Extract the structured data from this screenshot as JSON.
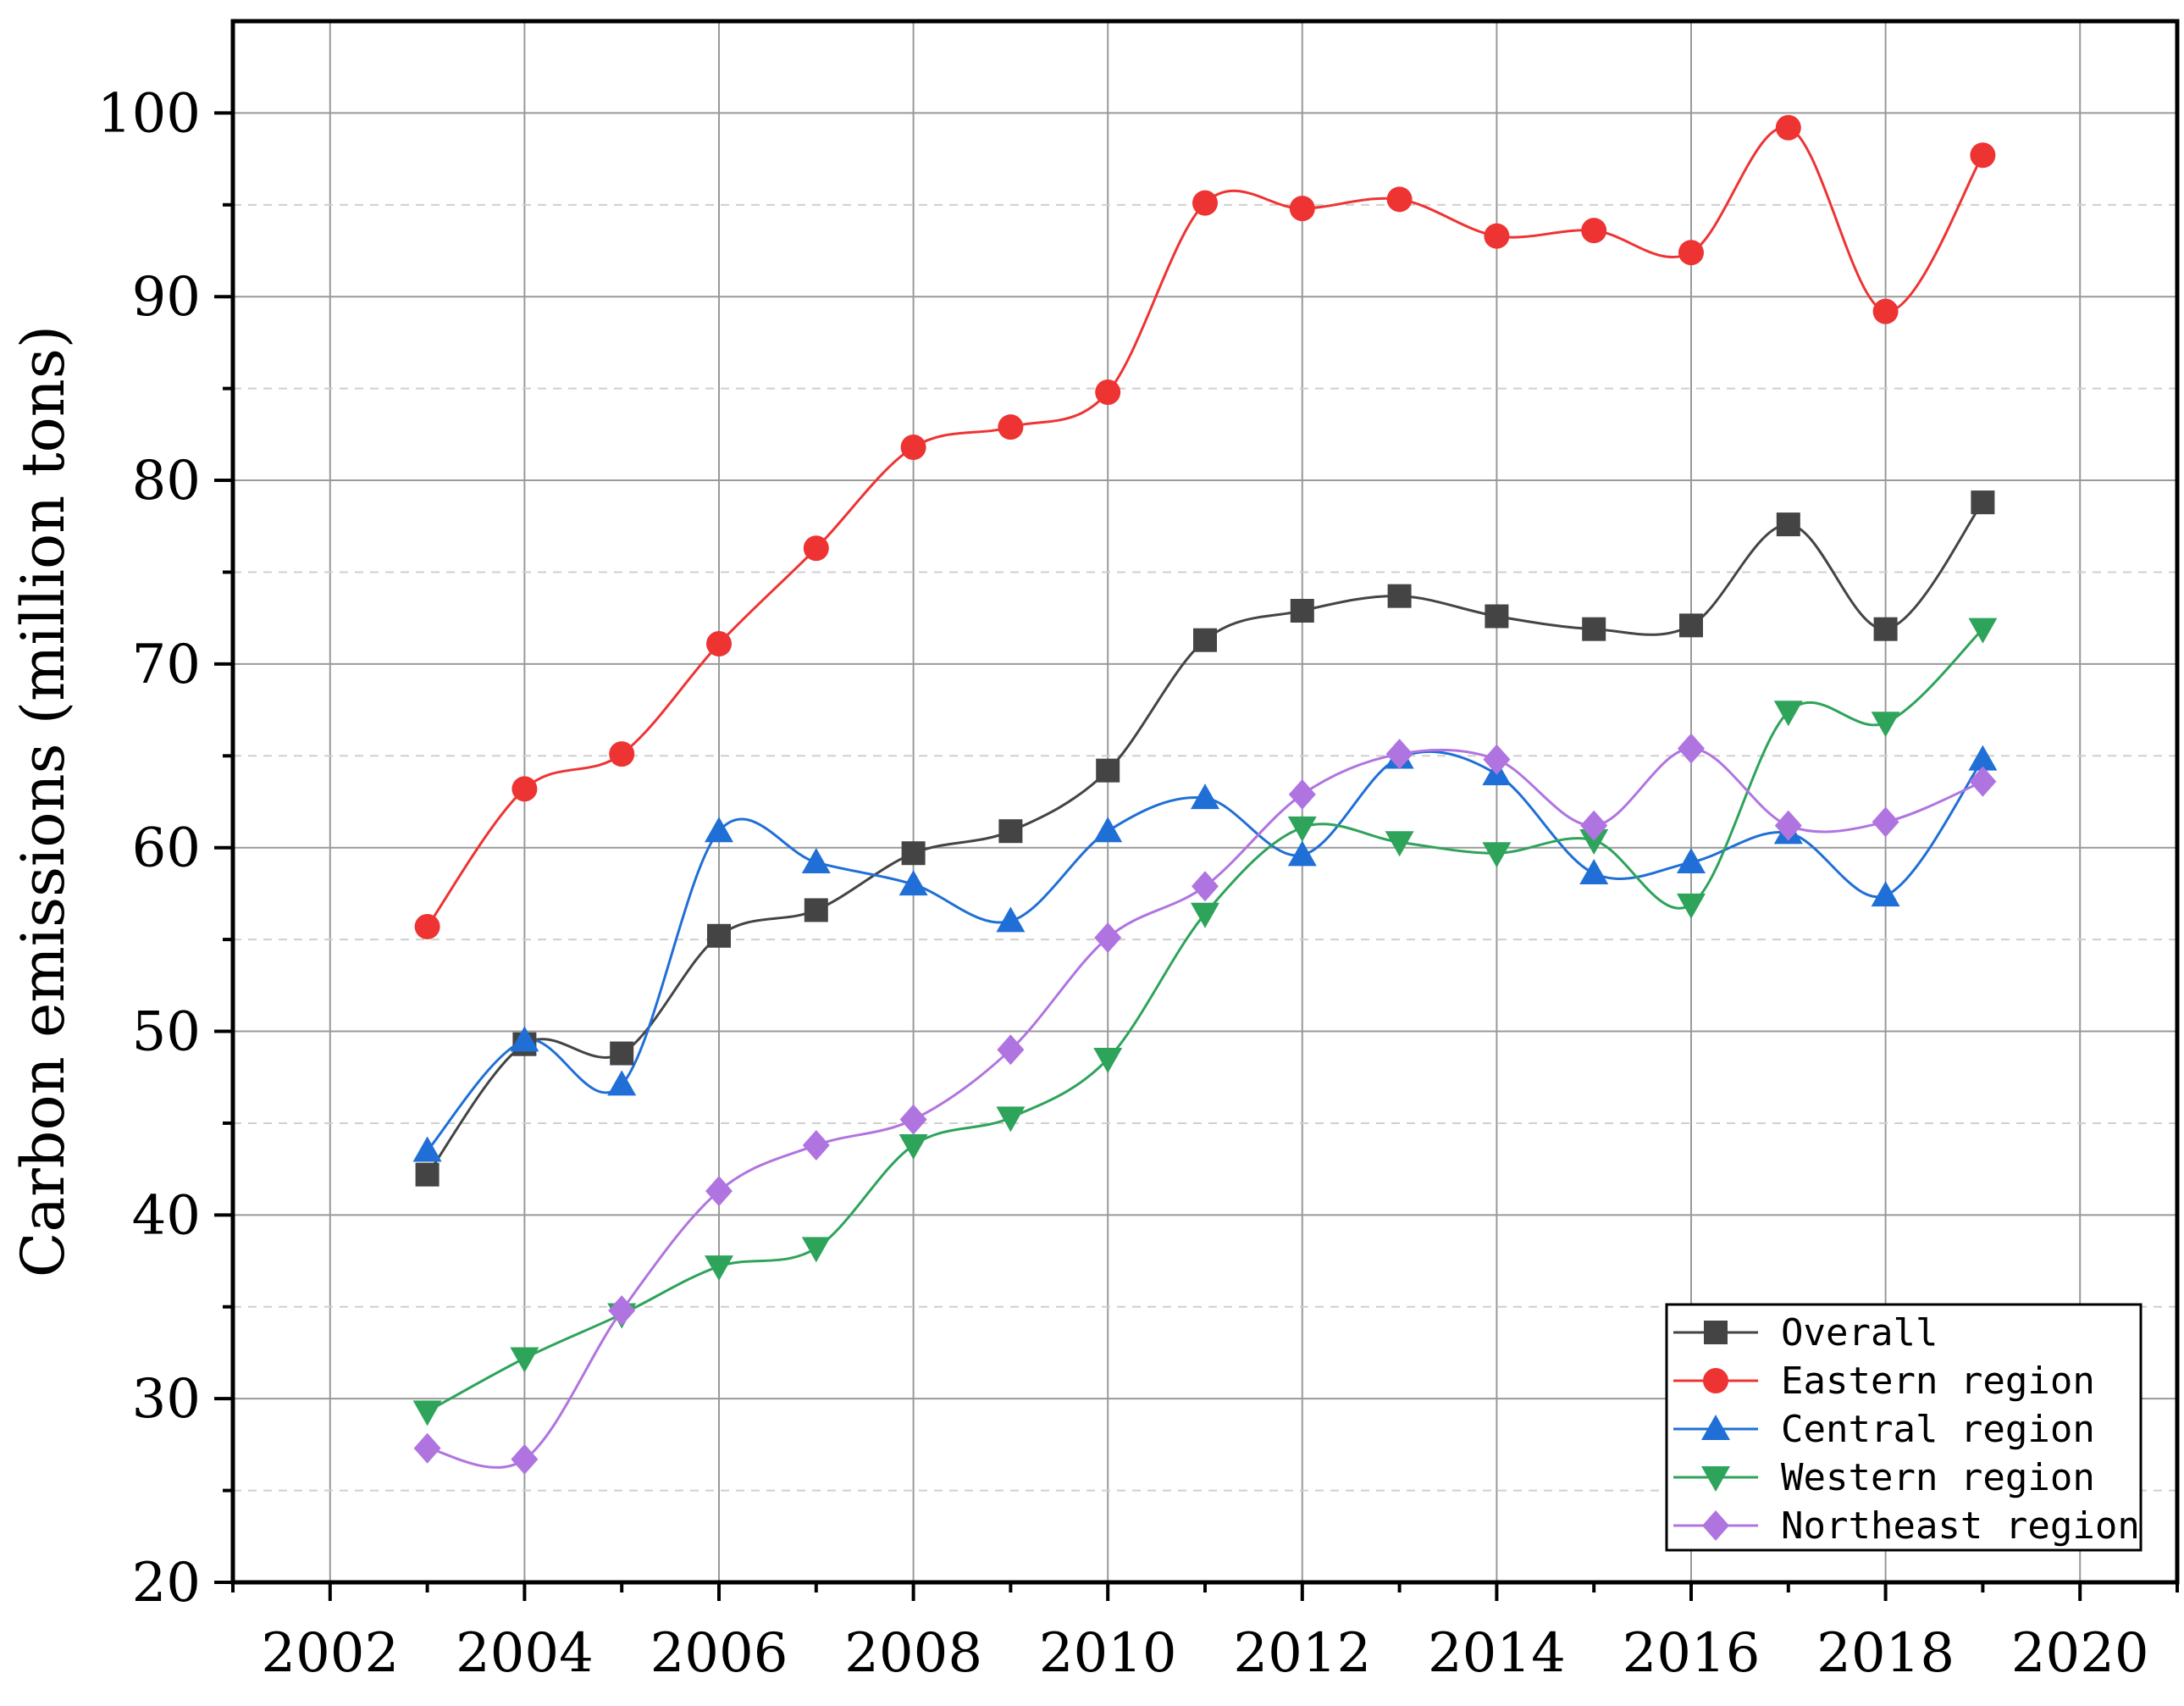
{
  "chart_data": {
    "type": "line",
    "title": "",
    "xlabel": "",
    "ylabel": "Carbon emissions (million tons)",
    "xlim": [
      2001,
      2021
    ],
    "ylim": [
      20,
      105
    ],
    "x_ticks": [
      2002,
      2004,
      2006,
      2008,
      2010,
      2012,
      2014,
      2016,
      2018,
      2020
    ],
    "y_ticks": [
      20,
      30,
      40,
      50,
      60,
      70,
      80,
      90,
      100
    ],
    "grid": true,
    "legend_position": "bottom-right",
    "x": [
      2003,
      2004,
      2005,
      2006,
      2007,
      2008,
      2009,
      2010,
      2011,
      2012,
      2013,
      2014,
      2015,
      2016,
      2017,
      2018,
      2019
    ],
    "series": [
      {
        "name": "Overall",
        "color": "#444444",
        "marker": "square",
        "values": [
          42.2,
          49.3,
          48.8,
          55.2,
          56.6,
          59.7,
          60.9,
          64.2,
          71.3,
          72.9,
          73.7,
          72.6,
          71.9,
          72.1,
          77.6,
          71.9,
          78.8
        ]
      },
      {
        "name": "Eastern region",
        "color": "#ee3333",
        "marker": "circle",
        "values": [
          55.7,
          63.2,
          65.1,
          71.1,
          76.3,
          81.8,
          82.9,
          84.8,
          95.1,
          94.8,
          95.3,
          93.3,
          93.6,
          92.4,
          99.2,
          89.2,
          97.7
        ]
      },
      {
        "name": "Central region",
        "color": "#1f6fd6",
        "marker": "triangle-up",
        "values": [
          43.5,
          49.5,
          47.1,
          60.9,
          59.2,
          58.0,
          56.0,
          60.9,
          62.7,
          59.6,
          64.9,
          64.0,
          58.6,
          59.2,
          60.8,
          57.4,
          64.8
        ]
      },
      {
        "name": "Western region",
        "color": "#2ea35a",
        "marker": "triangle-down",
        "values": [
          29.3,
          32.2,
          34.6,
          37.2,
          38.2,
          43.8,
          45.3,
          48.5,
          56.4,
          61.1,
          60.3,
          59.7,
          60.4,
          56.9,
          67.4,
          66.8,
          71.9
        ]
      },
      {
        "name": "Northeast region",
        "color": "#b074e0",
        "marker": "diamond",
        "values": [
          27.3,
          26.7,
          34.8,
          41.3,
          43.8,
          45.2,
          49.0,
          55.1,
          57.9,
          62.9,
          65.1,
          64.8,
          61.2,
          65.4,
          61.2,
          61.4,
          63.6
        ]
      }
    ]
  }
}
